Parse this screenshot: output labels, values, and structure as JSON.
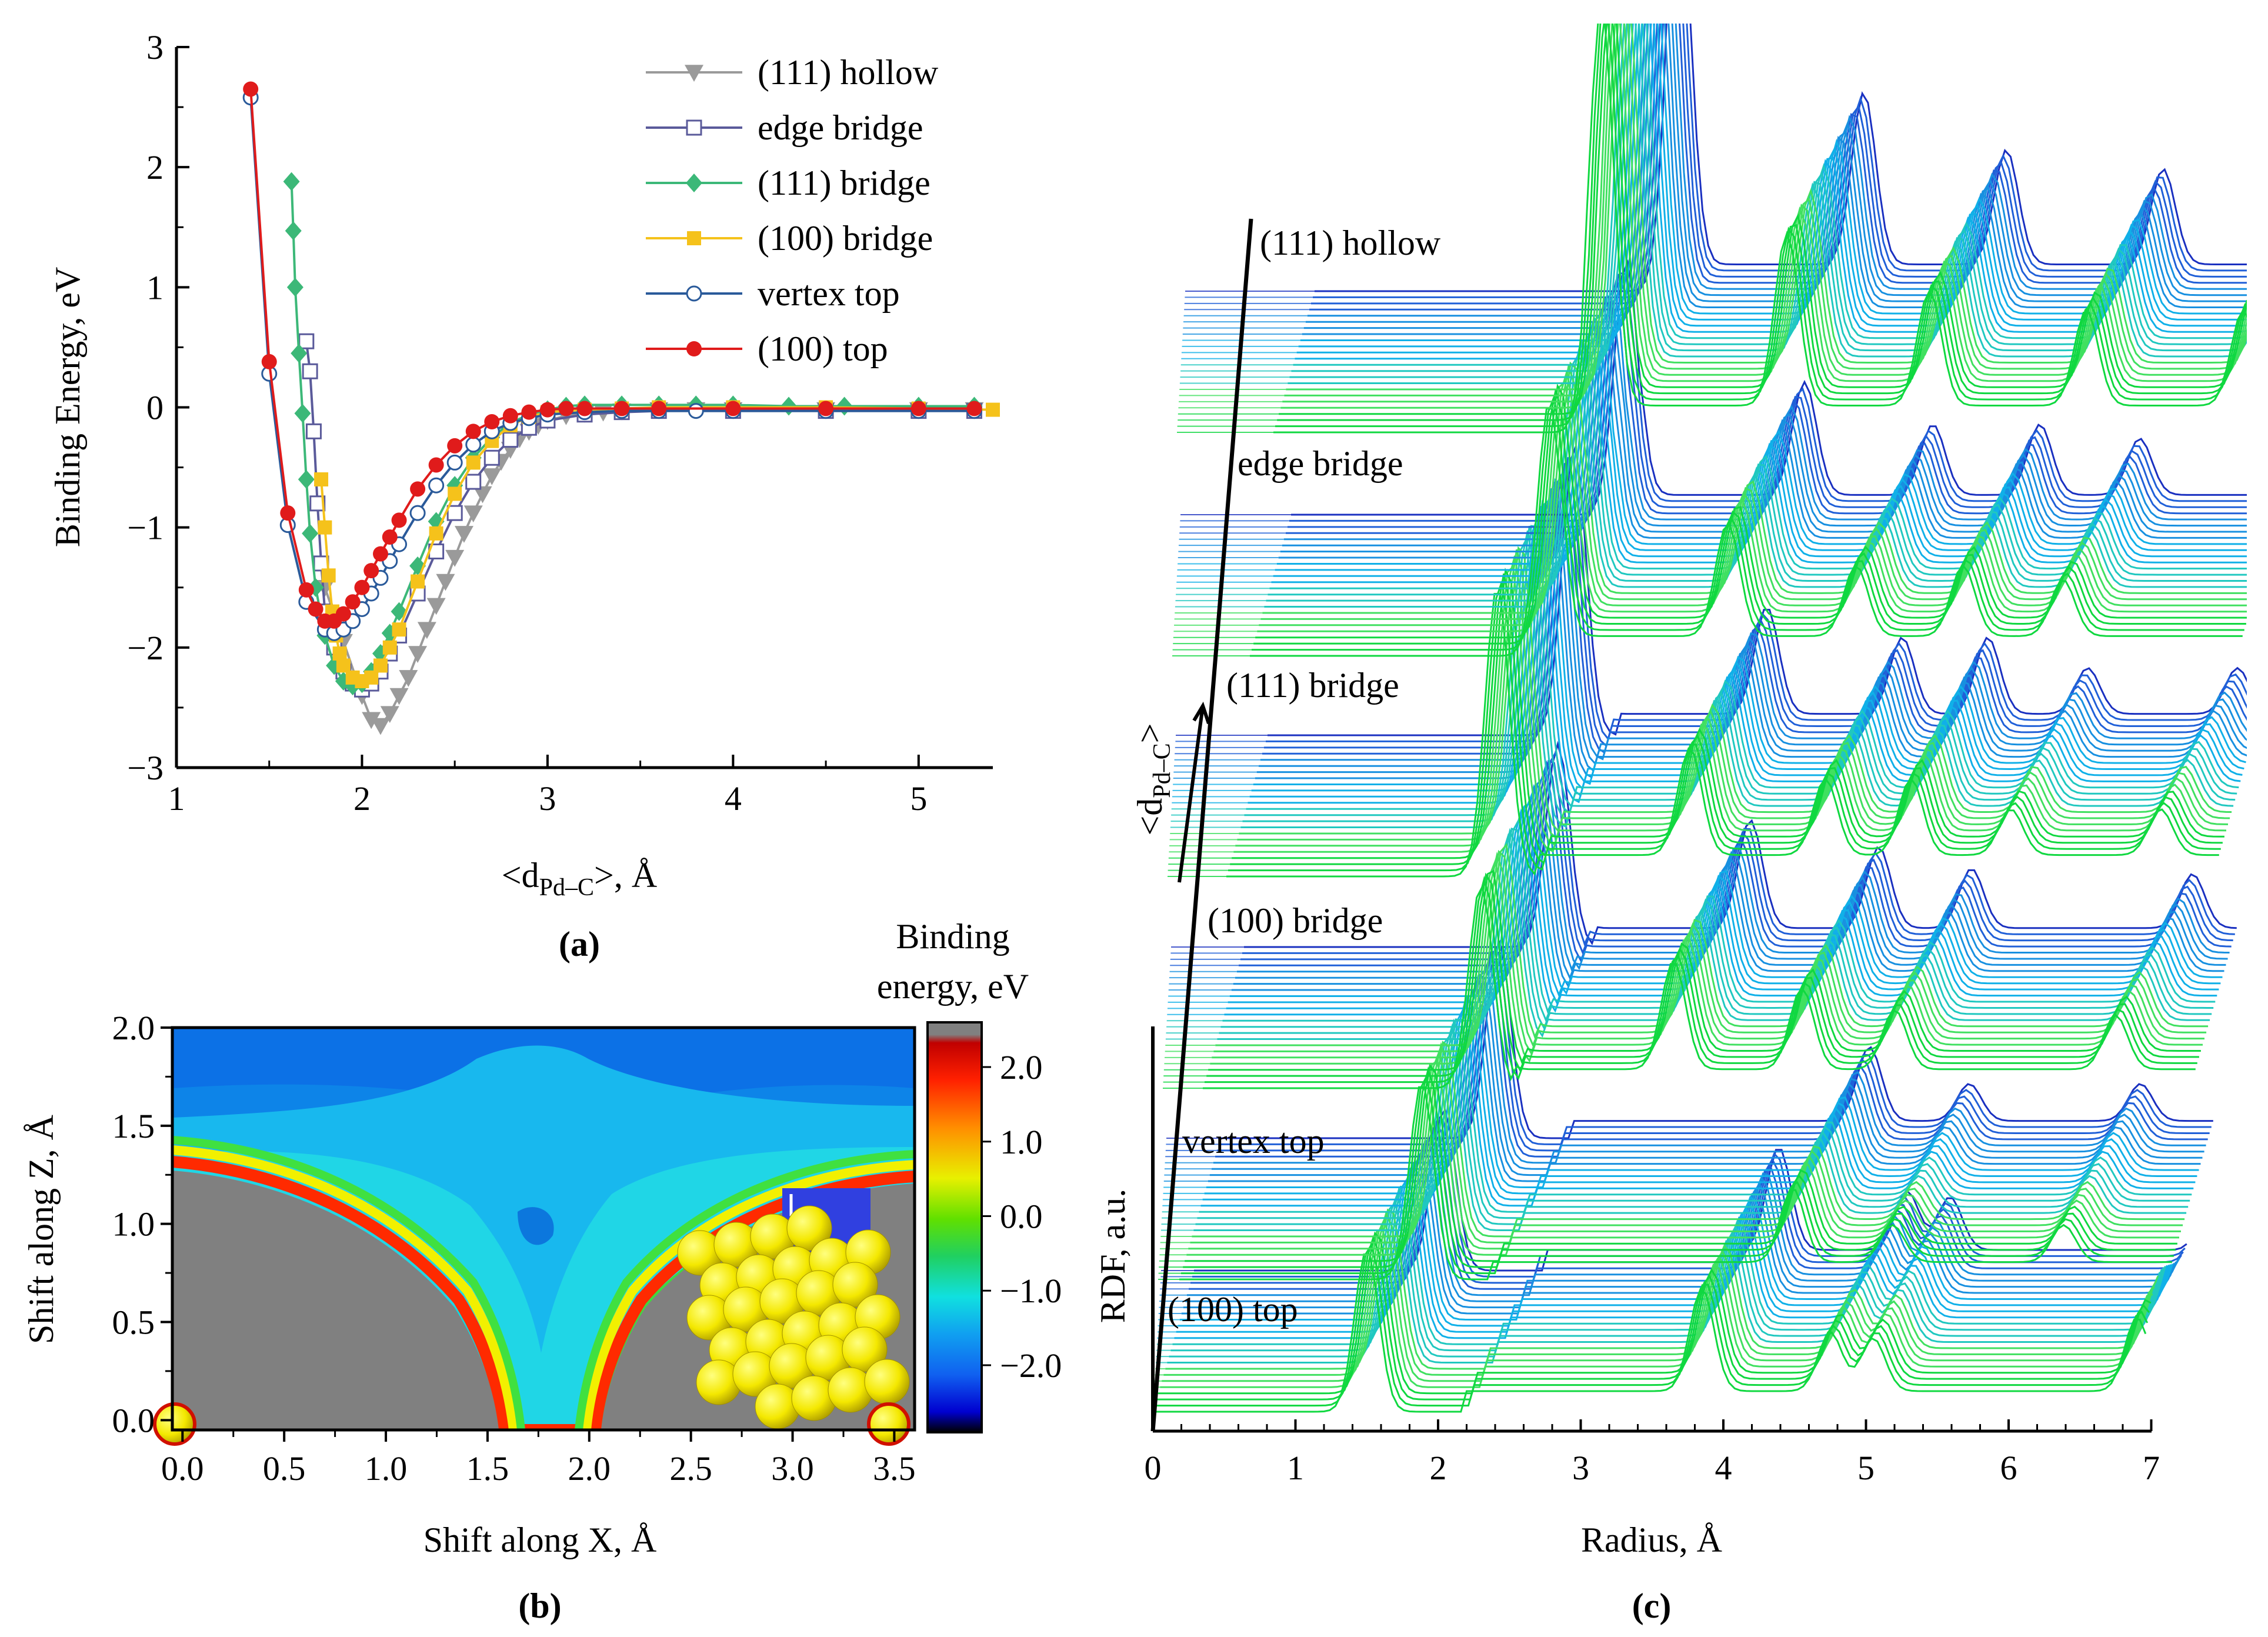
{
  "chart_data": [
    {
      "panel_label": "(a)",
      "type": "line",
      "ylabel": "Binding Energy, eV",
      "xlabel_main": "<d",
      "xlabel_sub": "Pd–C",
      "xlabel_tail": ">, Å",
      "xlim": [
        1,
        5.4
      ],
      "ylim": [
        -3,
        3
      ],
      "xticks": [
        1,
        2,
        3,
        4,
        5
      ],
      "yticks": [
        -3,
        -2,
        -1,
        0,
        1,
        2,
        3
      ],
      "xtick_labels": [
        "1",
        "2",
        "3",
        "4",
        "5"
      ],
      "ytick_labels": [
        "−3",
        "−2",
        "−1",
        "0",
        "1",
        "2",
        "3"
      ],
      "legend_position": "top-right",
      "series": [
        {
          "name": "(111) hollow",
          "color": "#9a9a9a",
          "marker": "triangle-down",
          "x": [
            1.8,
            1.9,
            2.0,
            2.05,
            2.1,
            2.15,
            2.2,
            2.25,
            2.3,
            2.35,
            2.4,
            2.45,
            2.5,
            2.55,
            2.6,
            2.65,
            2.7,
            2.75,
            2.8,
            2.85,
            2.9,
            2.95,
            3.0,
            3.1,
            3.2,
            3.3,
            3.4,
            3.6,
            3.8,
            4.0,
            4.5,
            5.0,
            5.3
          ],
          "y": [
            -1.5,
            -1.95,
            -2.4,
            -2.6,
            -2.65,
            -2.55,
            -2.4,
            -2.25,
            -2.05,
            -1.85,
            -1.65,
            -1.45,
            -1.25,
            -1.05,
            -0.88,
            -0.72,
            -0.57,
            -0.45,
            -0.35,
            -0.26,
            -0.2,
            -0.15,
            -0.11,
            -0.07,
            -0.05,
            -0.04,
            -0.03,
            -0.02,
            -0.02,
            -0.02,
            -0.02,
            -0.02,
            -0.02
          ]
        },
        {
          "name": "edge bridge",
          "color": "#5a5a9a",
          "marker": "square-open",
          "x": [
            1.7,
            1.72,
            1.74,
            1.76,
            1.78,
            1.8,
            1.85,
            1.9,
            1.95,
            2.0,
            2.05,
            2.1,
            2.15,
            2.2,
            2.3,
            2.4,
            2.5,
            2.6,
            2.7,
            2.8,
            2.9,
            3.0,
            3.2,
            3.4,
            3.6,
            4.0,
            4.5,
            5.0,
            5.3
          ],
          "y": [
            0.55,
            0.3,
            -0.2,
            -0.8,
            -1.3,
            -1.7,
            -2.0,
            -2.2,
            -2.3,
            -2.35,
            -2.3,
            -2.2,
            -2.05,
            -1.9,
            -1.55,
            -1.2,
            -0.88,
            -0.62,
            -0.42,
            -0.27,
            -0.17,
            -0.11,
            -0.06,
            -0.04,
            -0.03,
            -0.03,
            -0.03,
            -0.03,
            -0.03
          ]
        },
        {
          "name": "(111) bridge",
          "color": "#3cb878",
          "marker": "diamond",
          "x": [
            1.62,
            1.63,
            1.64,
            1.66,
            1.68,
            1.7,
            1.72,
            1.75,
            1.8,
            1.85,
            1.9,
            1.95,
            2.0,
            2.05,
            2.1,
            2.15,
            2.2,
            2.3,
            2.4,
            2.5,
            2.6,
            2.7,
            2.8,
            2.9,
            3.0,
            3.1,
            3.2,
            3.4,
            3.6,
            3.8,
            4.0,
            4.3,
            4.6,
            5.0,
            5.3
          ],
          "y": [
            1.88,
            1.47,
            1.0,
            0.45,
            -0.05,
            -0.6,
            -1.05,
            -1.5,
            -1.9,
            -2.15,
            -2.28,
            -2.32,
            -2.3,
            -2.2,
            -2.05,
            -1.88,
            -1.7,
            -1.32,
            -0.95,
            -0.65,
            -0.42,
            -0.25,
            -0.13,
            -0.06,
            -0.02,
            0.01,
            0.02,
            0.02,
            0.02,
            0.02,
            0.02,
            0.01,
            0.01,
            0.01,
            0.01
          ]
        },
        {
          "name": "(100) bridge",
          "color": "#f5c21b",
          "marker": "square",
          "x": [
            1.78,
            1.8,
            1.82,
            1.84,
            1.86,
            1.88,
            1.9,
            1.95,
            2.0,
            2.05,
            2.1,
            2.15,
            2.2,
            2.3,
            2.4,
            2.5,
            2.6,
            2.7,
            2.8,
            2.9,
            3.0,
            3.2,
            3.4,
            3.6,
            4.0,
            4.5,
            5.0,
            5.4
          ],
          "y": [
            -0.6,
            -1.0,
            -1.4,
            -1.7,
            -1.9,
            -2.05,
            -2.15,
            -2.25,
            -2.28,
            -2.25,
            -2.15,
            -2.0,
            -1.85,
            -1.45,
            -1.05,
            -0.72,
            -0.46,
            -0.28,
            -0.15,
            -0.08,
            -0.04,
            -0.02,
            -0.01,
            0.0,
            0.0,
            0.0,
            -0.01,
            -0.02
          ]
        },
        {
          "name": "vertex top",
          "color": "#2a5a9a",
          "marker": "circle-open",
          "x": [
            1.4,
            1.5,
            1.6,
            1.7,
            1.8,
            1.85,
            1.9,
            1.95,
            2.0,
            2.05,
            2.1,
            2.15,
            2.2,
            2.3,
            2.4,
            2.5,
            2.6,
            2.7,
            2.8,
            2.9,
            3.0,
            3.2,
            3.4,
            3.6,
            3.8,
            4.0,
            4.5,
            5.0,
            5.3
          ],
          "y": [
            2.58,
            0.28,
            -0.98,
            -1.62,
            -1.85,
            -1.88,
            -1.85,
            -1.78,
            -1.68,
            -1.55,
            -1.42,
            -1.28,
            -1.14,
            -0.88,
            -0.65,
            -0.46,
            -0.31,
            -0.2,
            -0.13,
            -0.09,
            -0.06,
            -0.04,
            -0.03,
            -0.03,
            -0.03,
            -0.03,
            -0.03,
            -0.03,
            -0.03
          ]
        },
        {
          "name": "(100) top",
          "color": "#e01b1b",
          "marker": "circle",
          "x": [
            1.4,
            1.5,
            1.6,
            1.7,
            1.75,
            1.8,
            1.85,
            1.9,
            1.95,
            2.0,
            2.05,
            2.1,
            2.15,
            2.2,
            2.3,
            2.4,
            2.5,
            2.6,
            2.7,
            2.8,
            2.9,
            3.0,
            3.1,
            3.2,
            3.4,
            3.6,
            4.0,
            4.5,
            5.0,
            5.3
          ],
          "y": [
            2.65,
            0.38,
            -0.88,
            -1.52,
            -1.68,
            -1.78,
            -1.78,
            -1.72,
            -1.62,
            -1.5,
            -1.36,
            -1.22,
            -1.08,
            -0.94,
            -0.68,
            -0.48,
            -0.32,
            -0.2,
            -0.12,
            -0.07,
            -0.04,
            -0.02,
            -0.01,
            -0.01,
            -0.01,
            -0.01,
            -0.01,
            -0.01,
            -0.01,
            -0.01
          ]
        }
      ]
    },
    {
      "panel_label": "(b)",
      "type": "heatmap",
      "xlabel": "Shift along X, Å",
      "ylabel": "Shift along Z, Å",
      "xlim": [
        -0.05,
        3.6
      ],
      "ylim": [
        -0.05,
        2.0
      ],
      "xticks": [
        0.0,
        0.5,
        1.0,
        1.5,
        2.0,
        2.5,
        3.0,
        3.5
      ],
      "yticks": [
        0.0,
        0.5,
        1.0,
        1.5,
        2.0
      ],
      "xtick_labels": [
        "0.0",
        "0.5",
        "1.0",
        "1.5",
        "2.0",
        "2.5",
        "3.0",
        "3.5"
      ],
      "ytick_labels": [
        "0.0",
        "0.5",
        "1.0",
        "1.5",
        "2.0"
      ],
      "colorbar_title_line1": "Binding",
      "colorbar_title_line2": "energy, eV",
      "colorbar_range": [
        -2.9,
        2.6
      ],
      "colorbar_ticks": [
        2.0,
        1.0,
        0.0,
        -1.0,
        -2.0
      ],
      "colorbar_tick_labels": [
        "2.0",
        "1.0",
        "0.0",
        "−1.0",
        "−2.0"
      ],
      "colorscale": [
        "#000000",
        "#0000d0",
        "#1060f0",
        "#10a0f0",
        "#10e0e0",
        "#20d060",
        "#60e000",
        "#e8f000",
        "#ff9000",
        "#ff2000",
        "#c00000",
        "#808080"
      ],
      "excluded_region_color": "#808080",
      "valley_x": 1.8
    },
    {
      "panel_label": "(c)",
      "type": "line",
      "subtype": "waterfall",
      "xlabel": "Radius, Å",
      "ylabel": "RDF, a.u.",
      "stack_axis_label_main": "<d",
      "stack_axis_label_sub": "Pd–C",
      "stack_axis_label_tail": ">",
      "xlim": [
        0,
        7
      ],
      "xticks": [
        0,
        1,
        2,
        3,
        4,
        5,
        6,
        7
      ],
      "xtick_labels": [
        "0",
        "1",
        "2",
        "3",
        "4",
        "5",
        "6",
        "7"
      ],
      "stack_colors": [
        "#10d840",
        "#40e060",
        "#20c8c0",
        "#10b0e8",
        "#1890e0",
        "#2060d8",
        "#1a30c0"
      ],
      "stacks": [
        {
          "name": "(100) top",
          "peaks": [
            [
              1.5,
              0.55
            ],
            [
              3.85,
              0.35
            ],
            [
              4.75,
              0.2
            ],
            [
              5.05,
              0.18
            ],
            [
              6.9,
              0.25
            ]
          ]
        },
        {
          "name": "vertex top",
          "peaks": [
            [
              1.7,
              0.8
            ],
            [
              4.3,
              0.3
            ],
            [
              5.0,
              0.15
            ],
            [
              6.2,
              0.15
            ]
          ]
        },
        {
          "name": "(100) bridge",
          "peaks": [
            [
              1.95,
              0.75
            ],
            [
              3.3,
              0.4
            ],
            [
              4.2,
              0.3
            ],
            [
              4.85,
              0.22
            ],
            [
              6.4,
              0.2
            ]
          ]
        },
        {
          "name": "(111) bridge",
          "peaks": [
            [
              1.9,
              0.95
            ],
            [
              3.25,
              0.35
            ],
            [
              4.2,
              0.25
            ],
            [
              4.8,
              0.25
            ],
            [
              5.5,
              0.15
            ],
            [
              6.55,
              0.15
            ]
          ]
        },
        {
          "name": "edge bridge",
          "peaks": [
            [
              2.1,
              0.9
            ],
            [
              3.35,
              0.4
            ],
            [
              4.25,
              0.25
            ],
            [
              5.0,
              0.25
            ],
            [
              5.7,
              0.2
            ]
          ]
        },
        {
          "name": "(111) hollow",
          "peaks": [
            [
              2.3,
              1.05
            ],
            [
              3.6,
              0.45
            ],
            [
              4.6,
              0.3
            ],
            [
              5.7,
              0.25
            ],
            [
              6.8,
              0.25
            ]
          ]
        }
      ]
    }
  ]
}
